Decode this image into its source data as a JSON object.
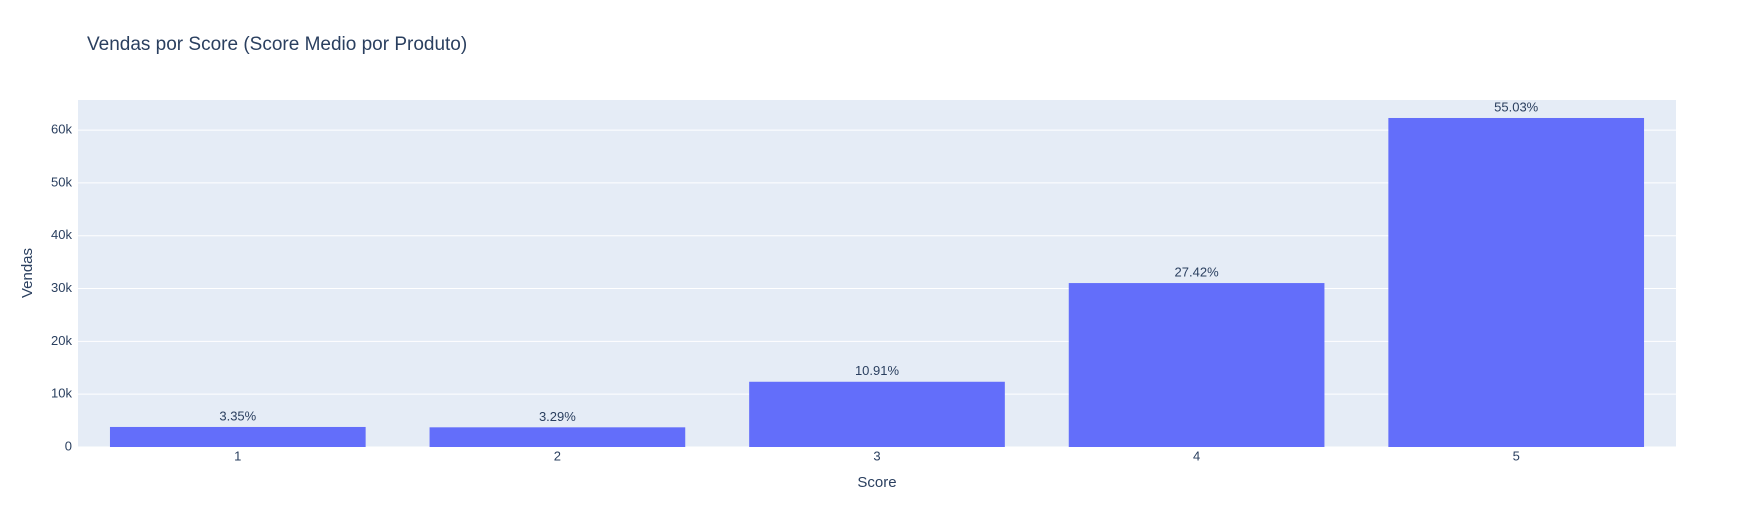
{
  "chart_data": {
    "type": "bar",
    "title": "Vendas por Score (Score Medio por Produto)",
    "x_label": "Score",
    "y_label": "Vendas",
    "categories": [
      "1",
      "2",
      "3",
      "4",
      "5"
    ],
    "values": [
      3793,
      3725,
      12351,
      31040,
      62294
    ],
    "bar_labels": [
      "3.35%",
      "3.29%",
      "10.91%",
      "27.42%",
      "55.03%"
    ],
    "color": "#636efa",
    "ylim": [
      0,
      65700
    ],
    "yticks": [
      0,
      {
        "value": 10000,
        "label": "10k"
      },
      {
        "value": 20000,
        "label": "20k"
      },
      {
        "value": 30000,
        "label": "30k"
      },
      {
        "value": 40000,
        "label": "40k"
      },
      {
        "value": 50000,
        "label": "50k"
      },
      {
        "value": 60000,
        "label": "60k"
      }
    ],
    "grid": true
  }
}
